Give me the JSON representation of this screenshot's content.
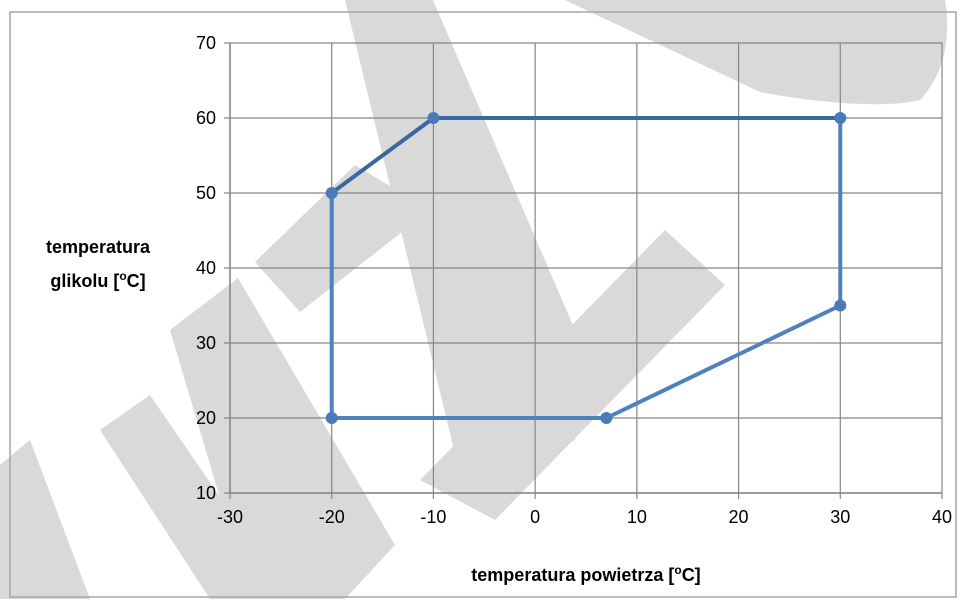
{
  "colors": {
    "series_line": "#4f81bd",
    "series_line_dark": "#3a67a1",
    "marker": "#4a7ab8",
    "grid": "#868686",
    "watermark": "#d9d9d9"
  },
  "chart_data": {
    "type": "line",
    "title": "",
    "xlabel_main": "temperatura powietrza [",
    "xlabel_sup": "o",
    "xlabel_end": "C]",
    "ylabel_line1": "temperatura",
    "ylabel_line2_main": "glikolu [",
    "ylabel_line2_sup": "o",
    "ylabel_line2_end": "C]",
    "xlim": [
      -30,
      40
    ],
    "ylim": [
      10,
      70
    ],
    "xticks": [
      -30,
      -20,
      -10,
      0,
      10,
      20,
      30,
      40
    ],
    "yticks": [
      10,
      20,
      30,
      40,
      50,
      60,
      70
    ],
    "grid": true,
    "legend": "none",
    "series": [
      {
        "points": [
          {
            "x": -20,
            "y": 50
          },
          {
            "x": -10,
            "y": 60
          },
          {
            "x": 30,
            "y": 60
          },
          {
            "x": 30,
            "y": 35
          },
          {
            "x": 7,
            "y": 20
          },
          {
            "x": -20,
            "y": 20
          },
          {
            "x": -20,
            "y": 50
          }
        ]
      }
    ]
  }
}
